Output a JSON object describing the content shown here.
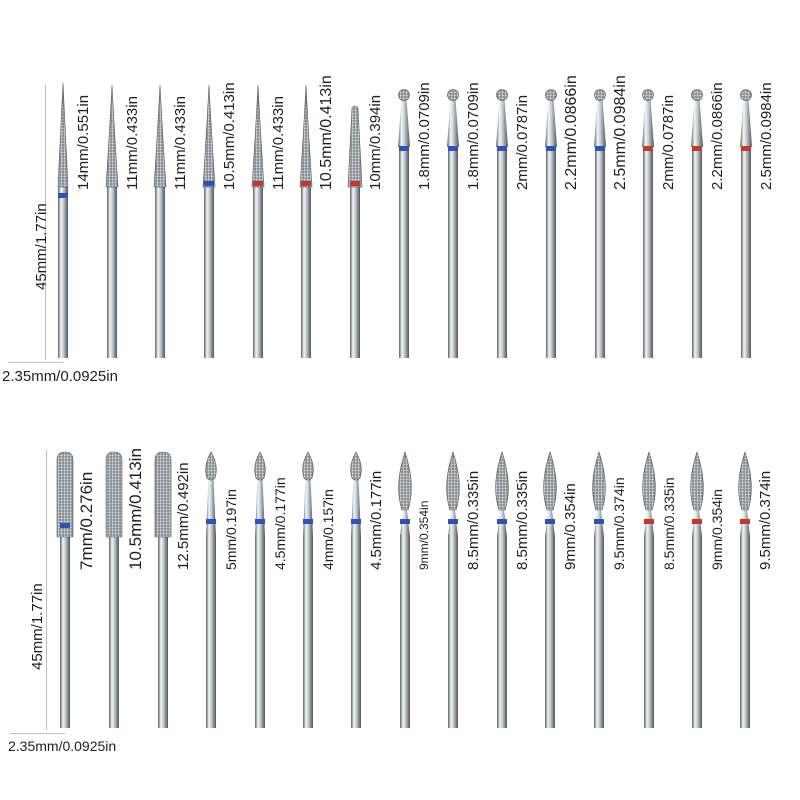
{
  "colors": {
    "blue_band": "#2a55b5",
    "red_band": "#c23a2a",
    "steel_light": "#f2f4f6",
    "steel_mid": "#a8aeb5",
    "steel_dark": "#4a5058"
  },
  "rows": [
    {
      "length_label": "45mm/1.77in",
      "shank_label": "2.35mm/0.0925in",
      "bits": [
        {
          "size": "14mm/0.551in",
          "head": "needle",
          "band": "blue"
        },
        {
          "size": "11mm/0.433in",
          "head": "cone",
          "band": "none"
        },
        {
          "size": "11mm/0.433in",
          "head": "cone",
          "band": "none"
        },
        {
          "size": "10.5mm/0.413in",
          "head": "cone",
          "band": "blue"
        },
        {
          "size": "11mm/0.433in",
          "head": "cone",
          "band": "red"
        },
        {
          "size": "10.5mm/0.413in",
          "head": "cone",
          "band": "red"
        },
        {
          "size": "10mm/0.394in",
          "head": "taper",
          "band": "red"
        },
        {
          "size": "1.8mm/0.0709in",
          "head": "ball",
          "band": "blue"
        },
        {
          "size": "1.8mm/0.0709in",
          "head": "ball",
          "band": "blue"
        },
        {
          "size": "2mm/0.0787in",
          "head": "ball",
          "band": "blue"
        },
        {
          "size": "2.2mm/0.0866in",
          "head": "ball",
          "band": "blue"
        },
        {
          "size": "2.5mm/0.0984in",
          "head": "ball",
          "band": "blue"
        },
        {
          "size": "2mm/0.0787in",
          "head": "ball",
          "band": "red"
        },
        {
          "size": "2.2mm/0.0866in",
          "head": "ball",
          "band": "red"
        },
        {
          "size": "2.5mm/0.0984in",
          "head": "ball",
          "band": "red"
        }
      ]
    },
    {
      "length_label": "45mm/1.77in",
      "shank_label": "2.35mm/0.0925in",
      "bits": [
        {
          "size": "7mm/0.276in",
          "head": "barrel",
          "band": "blue"
        },
        {
          "size": "10.5mm/0.413in",
          "head": "barrel",
          "band": "none"
        },
        {
          "size": "12.5mm/0.492in",
          "head": "barrel",
          "band": "none"
        },
        {
          "size": "5mm/0.197in",
          "head": "bud",
          "band": "blue"
        },
        {
          "size": "4.5mm/0.177in",
          "head": "bud",
          "band": "blue"
        },
        {
          "size": "4mm/0.157in",
          "head": "bud",
          "band": "blue"
        },
        {
          "size": "4.5mm/0.177in",
          "head": "bud",
          "band": "blue"
        },
        {
          "size": "9mm/0.354in",
          "head": "flame",
          "band": "blue"
        },
        {
          "size": "8.5mm/0.335in",
          "head": "flame",
          "band": "blue"
        },
        {
          "size": "8.5mm/0.335in",
          "head": "flame",
          "band": "blue"
        },
        {
          "size": "9mm/0.354in",
          "head": "flame",
          "band": "blue"
        },
        {
          "size": "9.5mm/0.374in",
          "head": "flame",
          "band": "blue"
        },
        {
          "size": "8.5mm/0.335in",
          "head": "flame",
          "band": "red"
        },
        {
          "size": "9mm/0.354in",
          "head": "flame",
          "band": "red"
        },
        {
          "size": "9.5mm/0.374in",
          "head": "flame",
          "band": "red"
        }
      ]
    }
  ]
}
